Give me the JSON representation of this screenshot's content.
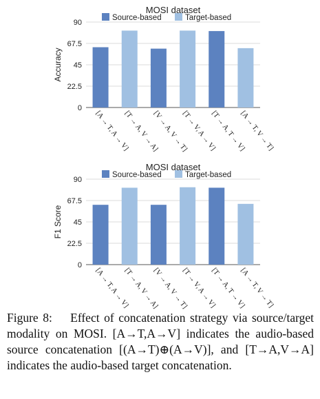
{
  "colors": {
    "source": "#5c82c0",
    "target": "#a0c0e2"
  },
  "caption": {
    "label": "Figure 8:",
    "text": "Effect of concatenation strategy via source/target modality on MOSI. [A→T,A→V] indicates the audio-based source concatenation [(A→T)⊕(A→V)], and [T→A,V→A] indicates the audio-based target concatenation."
  },
  "chart_data": [
    {
      "type": "bar",
      "title": "MOSI dataset",
      "ylabel": "Accuracy",
      "xlabel": "",
      "ylim": [
        0,
        90
      ],
      "yticks": [
        "0",
        "22.5",
        "45",
        "67.5",
        "90"
      ],
      "grid": true,
      "legend": "top",
      "categories": [
        "[A → T, A → V]",
        "[T → A, V → A]",
        "[V → A, V → T]",
        "[T → V, A → V]",
        "[T → A, T → V]",
        "[A → T, V → T]"
      ],
      "series": [
        {
          "name": "Source-based",
          "positions": [
            0,
            2,
            4
          ],
          "values": [
            63.5,
            62,
            80.5
          ]
        },
        {
          "name": "Target-based",
          "positions": [
            1,
            3,
            5
          ],
          "values": [
            81,
            81,
            62.5
          ]
        }
      ]
    },
    {
      "type": "bar",
      "title": "MOSI dataset",
      "ylabel": "F1 Score",
      "xlabel": "",
      "ylim": [
        0,
        90
      ],
      "yticks": [
        "0",
        "22.5",
        "45",
        "67.5",
        "90"
      ],
      "grid": true,
      "legend": "top",
      "categories": [
        "[A → T, A → V]",
        "[T → A, V → A]",
        "[V → A, V → T]",
        "[T → V, A → V]",
        "[T → A, T → V]",
        "[A → T, V → T]"
      ],
      "series": [
        {
          "name": "Source-based",
          "positions": [
            0,
            2,
            4
          ],
          "values": [
            63,
            63,
            81
          ]
        },
        {
          "name": "Target-based",
          "positions": [
            1,
            3,
            5
          ],
          "values": [
            81,
            81.5,
            64
          ]
        }
      ]
    }
  ]
}
